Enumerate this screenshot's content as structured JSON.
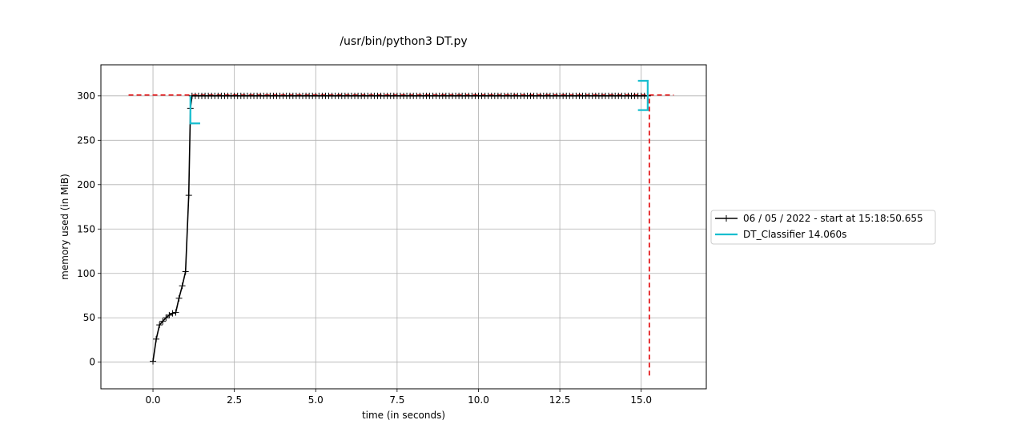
{
  "chart_data": {
    "type": "line",
    "title": "/usr/bin/python3 DT.py",
    "xlabel": "time (in seconds)",
    "ylabel": "memory used (in MiB)",
    "xlim": [
      -1.6,
      17.0
    ],
    "ylim": [
      -30,
      335
    ],
    "xticks": [
      0.0,
      2.5,
      5.0,
      7.5,
      10.0,
      12.5,
      15.0
    ],
    "xtick_labels": [
      "0.0",
      "2.5",
      "5.0",
      "7.5",
      "10.0",
      "12.5",
      "15.0"
    ],
    "yticks": [
      0,
      50,
      100,
      150,
      200,
      250,
      300
    ],
    "ytick_labels": [
      "0",
      "50",
      "100",
      "150",
      "200",
      "250",
      "300"
    ],
    "grid": true,
    "legend_placement": "right-outside",
    "series": [
      {
        "name": "06 / 05 / 2022 - start at 15:18:50.655",
        "color": "#000000",
        "marker": "plus",
        "early_points": {
          "x": [
            0.0,
            0.1,
            0.2,
            0.3,
            0.4,
            0.5,
            0.6,
            0.7,
            0.8,
            0.9,
            1.0,
            1.1,
            1.15,
            1.2
          ],
          "y": [
            1,
            26,
            42,
            46,
            50,
            53,
            55,
            56,
            72,
            86,
            102,
            188,
            286,
            300
          ]
        },
        "plateau": {
          "x_start": 1.2,
          "x_end": 15.2,
          "step": 0.1,
          "y": 300
        }
      },
      {
        "name": "DT_Classifier 14.060s",
        "color": "#17becf",
        "type": "function-bracket",
        "start": {
          "x": 1.15,
          "y_top": 300,
          "y_bottom": 269,
          "arm": 0.3
        },
        "end": {
          "x": 15.2,
          "y_top": 317,
          "y_bottom": 284,
          "arm": 0.3
        }
      }
    ],
    "reference_lines": {
      "color": "#e41a1c",
      "peak_memory_y": 301,
      "peak_x_range": [
        -0.75,
        16.0
      ],
      "end_time_x": 15.25,
      "end_y_range": [
        -15,
        301
      ]
    }
  }
}
